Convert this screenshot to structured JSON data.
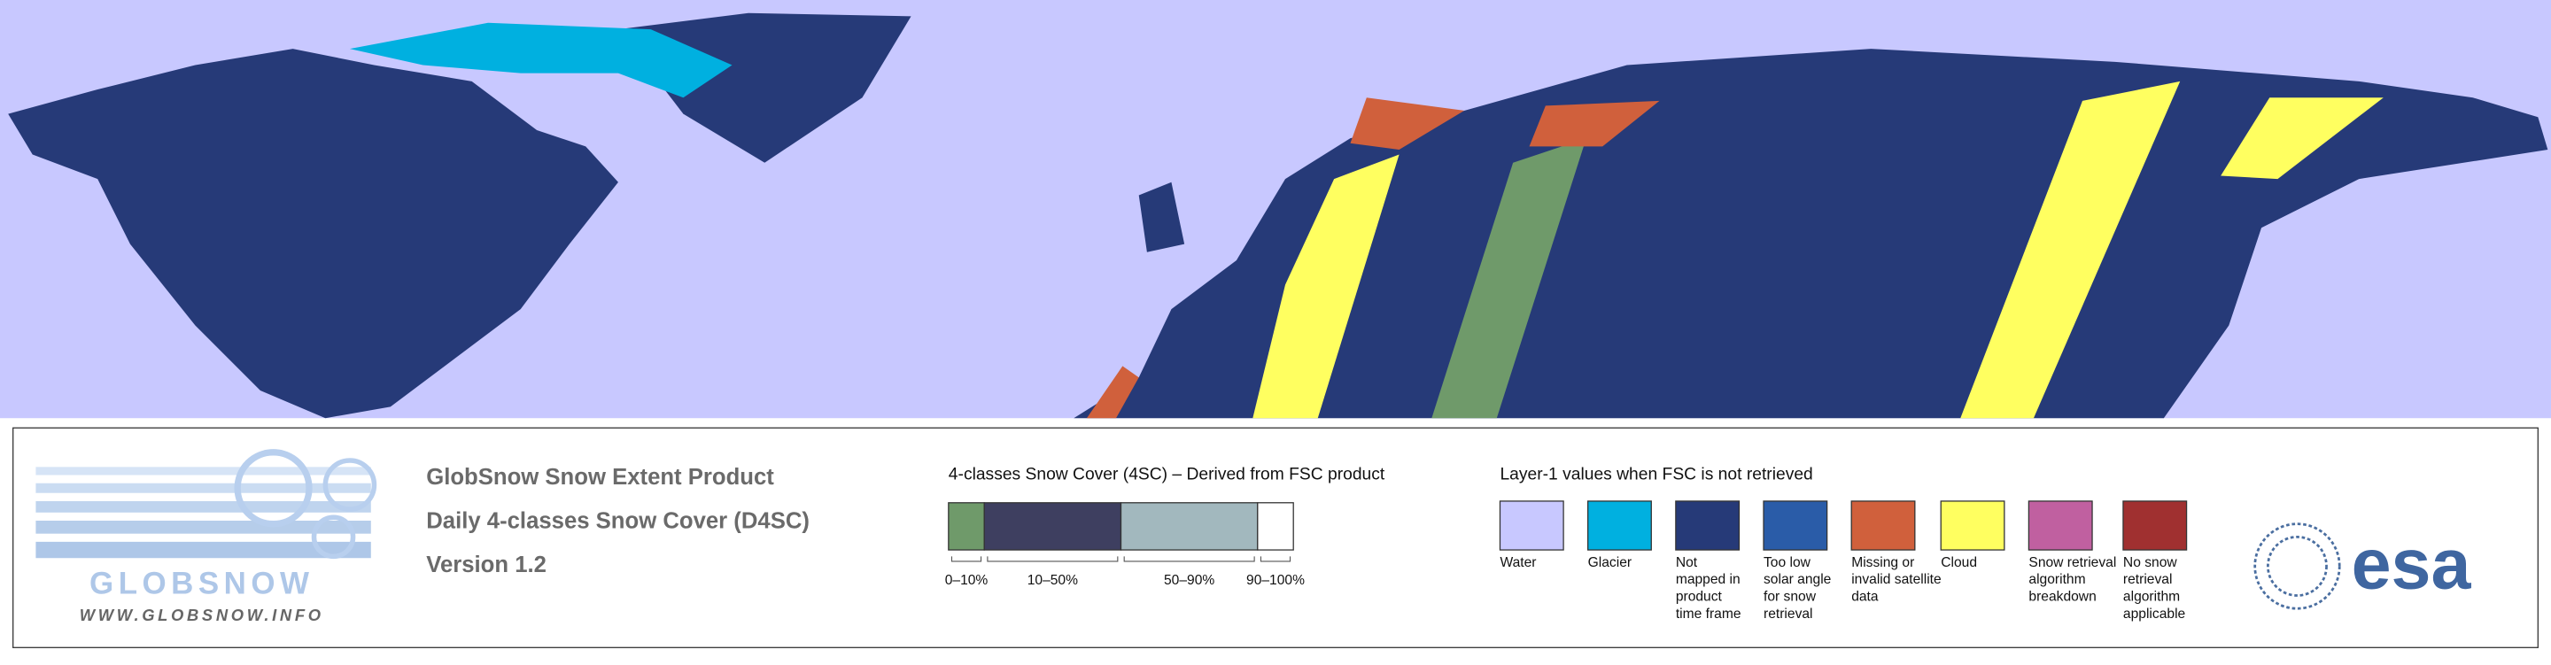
{
  "logo": {
    "name": "GLOBSNOW",
    "url": "WWW.GLOBSNOW.INFO"
  },
  "product": {
    "lines": [
      "GlobSnow Snow Extent Product",
      "Daily 4-classes Snow Cover (D4SC)",
      "Version 1.2"
    ]
  },
  "snow_cover_legend": {
    "title": "4-classes Snow Cover (4SC) – Derived from FSC product",
    "classes": [
      {
        "label": "0–10%",
        "color": "#6f9a6a"
      },
      {
        "label": "10–50%",
        "color": "#3e3f60"
      },
      {
        "label": "50–90%",
        "color": "#a2b8be"
      },
      {
        "label": "90–100%",
        "color": "#ffffff"
      }
    ]
  },
  "layer1_legend": {
    "title": "Layer-1 values when FSC is not retrieved",
    "items": [
      {
        "lines": [
          "Water"
        ],
        "color": "#c8c8ff"
      },
      {
        "lines": [
          "Glacier"
        ],
        "color": "#00b0e0"
      },
      {
        "lines": [
          "Not",
          "mapped in",
          "product",
          "time frame"
        ],
        "color": "#263a78"
      },
      {
        "lines": [
          "Too low",
          "solar angle",
          "for snow",
          "retrieval"
        ],
        "color": "#2a5ca8"
      },
      {
        "lines": [
          "Missing or",
          "invalid satellite",
          "data"
        ],
        "color": "#d0603c"
      },
      {
        "lines": [
          "Cloud"
        ],
        "color": "#ffff60"
      },
      {
        "lines": [
          "Snow retrieval",
          "algorithm",
          "breakdown"
        ],
        "color": "#c060a0"
      },
      {
        "lines": [
          "No snow",
          "retrieval",
          "algorithm",
          "applicable"
        ],
        "color": "#a03030"
      }
    ]
  },
  "esa_logo": "esa"
}
